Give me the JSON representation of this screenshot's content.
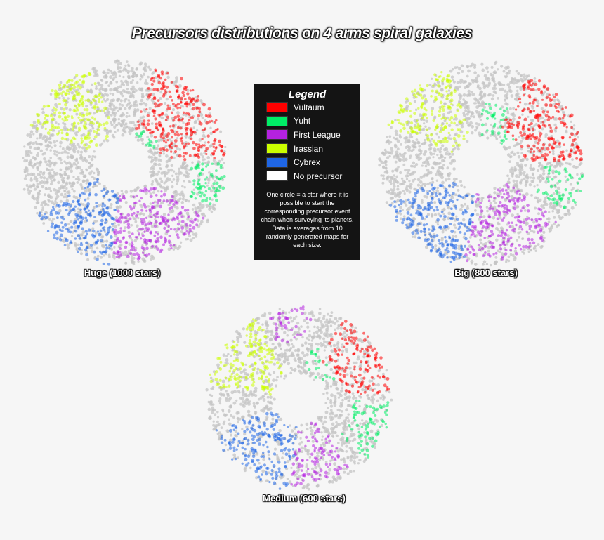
{
  "title": "Precursors distributions on 4 arms spiral galaxies",
  "legend": {
    "title": "Legend",
    "items": [
      {
        "label": "Vultaum",
        "color": "#ff0000"
      },
      {
        "label": "Yuht",
        "color": "#00ee66"
      },
      {
        "label": "First League",
        "color": "#b422e0"
      },
      {
        "label": "Irassian",
        "color": "#ccff00"
      },
      {
        "label": "Cybrex",
        "color": "#1f66e5"
      },
      {
        "label": "No precursor",
        "color": "#ffffff"
      }
    ],
    "note": "One circle = a star where it is possible to start the corresponding precursor event chain when surveying its planets. Data is averages from 10 randomly generated maps for each size."
  },
  "colors": {
    "background": "#f6f6f6",
    "no_precursor_dots": "#c4c4c4",
    "legend_bg": "#141414"
  },
  "chart_data": [
    {
      "type": "scatter",
      "caption": "Huge (1000 stars)",
      "regions": [
        {
          "precursor": "Vultaum",
          "angle_from": -72,
          "angle_to": -3,
          "r_from": 0.38,
          "r_to": 1.0
        },
        {
          "precursor": "Yuht",
          "angle_from": -70,
          "angle_to": -24,
          "r_from": 0.3,
          "r_to": 0.62
        },
        {
          "precursor": "Yuht",
          "angle_from": 0,
          "angle_to": 26,
          "r_from": 0.66,
          "r_to": 1.0
        },
        {
          "precursor": "Irassian",
          "angle_from": -158,
          "angle_to": -108,
          "r_from": 0.3,
          "r_to": 1.0
        },
        {
          "precursor": "Cybrex",
          "angle_from": 98,
          "angle_to": 150,
          "r_from": 0.3,
          "r_to": 1.0
        },
        {
          "precursor": "First League",
          "angle_from": 34,
          "angle_to": 98,
          "r_from": 0.3,
          "r_to": 0.95
        }
      ]
    },
    {
      "type": "scatter",
      "caption": "Big (800 stars)",
      "regions": [
        {
          "precursor": "Vultaum",
          "angle_from": -62,
          "angle_to": -2,
          "r_from": 0.42,
          "r_to": 1.0
        },
        {
          "precursor": "Yuht",
          "angle_from": -90,
          "angle_to": -38,
          "r_from": 0.3,
          "r_to": 0.62
        },
        {
          "precursor": "Yuht",
          "angle_from": 2,
          "angle_to": 28,
          "r_from": 0.62,
          "r_to": 1.0
        },
        {
          "precursor": "Irassian",
          "angle_from": -158,
          "angle_to": -110,
          "r_from": 0.3,
          "r_to": 1.0
        },
        {
          "precursor": "Cybrex",
          "angle_from": 100,
          "angle_to": 158,
          "r_from": 0.3,
          "r_to": 1.0
        },
        {
          "precursor": "First League",
          "angle_from": 36,
          "angle_to": 100,
          "r_from": 0.3,
          "r_to": 0.95
        }
      ]
    },
    {
      "type": "scatter",
      "caption": "Medium (600 stars)",
      "regions": [
        {
          "precursor": "Vultaum",
          "angle_from": -62,
          "angle_to": -4,
          "r_from": 0.48,
          "r_to": 1.0
        },
        {
          "precursor": "Yuht",
          "angle_from": -80,
          "angle_to": -28,
          "r_from": 0.3,
          "r_to": 0.58
        },
        {
          "precursor": "Yuht",
          "angle_from": 2,
          "angle_to": 42,
          "r_from": 0.58,
          "r_to": 1.0
        },
        {
          "precursor": "First League",
          "angle_from": -112,
          "angle_to": -82,
          "r_from": 0.66,
          "r_to": 1.0
        },
        {
          "precursor": "First League",
          "angle_from": 52,
          "angle_to": 96,
          "r_from": 0.3,
          "r_to": 0.95
        },
        {
          "precursor": "Irassian",
          "angle_from": -172,
          "angle_to": -118,
          "r_from": 0.3,
          "r_to": 1.0
        },
        {
          "precursor": "Cybrex",
          "angle_from": 96,
          "angle_to": 160,
          "r_from": 0.3,
          "r_to": 1.0
        }
      ]
    }
  ]
}
